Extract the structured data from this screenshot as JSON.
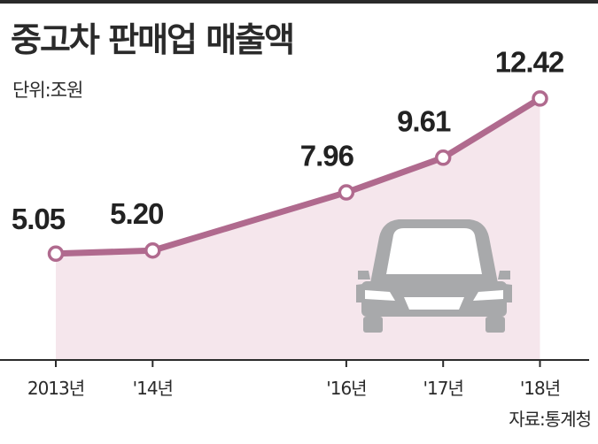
{
  "title": "중고차 판매업 매출액",
  "unit_label": "단위:조원",
  "source": "자료:통계청",
  "colors": {
    "line": "#b06a8e",
    "area": "#f5e6ec",
    "car": "#a8a9ab",
    "axis": "#2b2b2b"
  },
  "chart_data": {
    "type": "area",
    "title": "중고차 판매업 매출액",
    "unit": "조원",
    "x": [
      "2013년",
      "'14년",
      "'16년",
      "'17년",
      "'18년"
    ],
    "x_years": [
      2013,
      2014,
      2016,
      2017,
      2018
    ],
    "values": [
      5.05,
      5.2,
      7.96,
      9.61,
      12.42
    ],
    "value_labels": [
      "5.05",
      "5.20",
      "7.96",
      "9.61",
      "12.42"
    ],
    "ylim": [
      0,
      14
    ],
    "grid": false,
    "legend": "none",
    "icon": "car-icon"
  }
}
